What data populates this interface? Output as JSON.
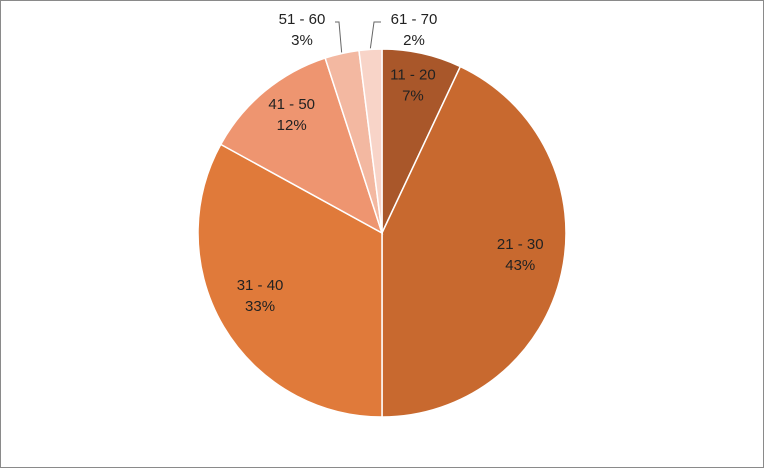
{
  "chart_data": {
    "type": "pie",
    "categories": [
      "11 - 20",
      "21 - 30",
      "31 - 40",
      "41 - 50",
      "51 - 60",
      "61 - 70"
    ],
    "values": [
      7,
      43,
      33,
      12,
      3,
      2
    ],
    "value_labels": [
      "7%",
      "43%",
      "33%",
      "12%",
      "3%",
      "2%"
    ],
    "colors": [
      "#a9572a",
      "#c8692f",
      "#e07a3a",
      "#ee9570",
      "#f3b8a1",
      "#f8d4c8"
    ]
  }
}
